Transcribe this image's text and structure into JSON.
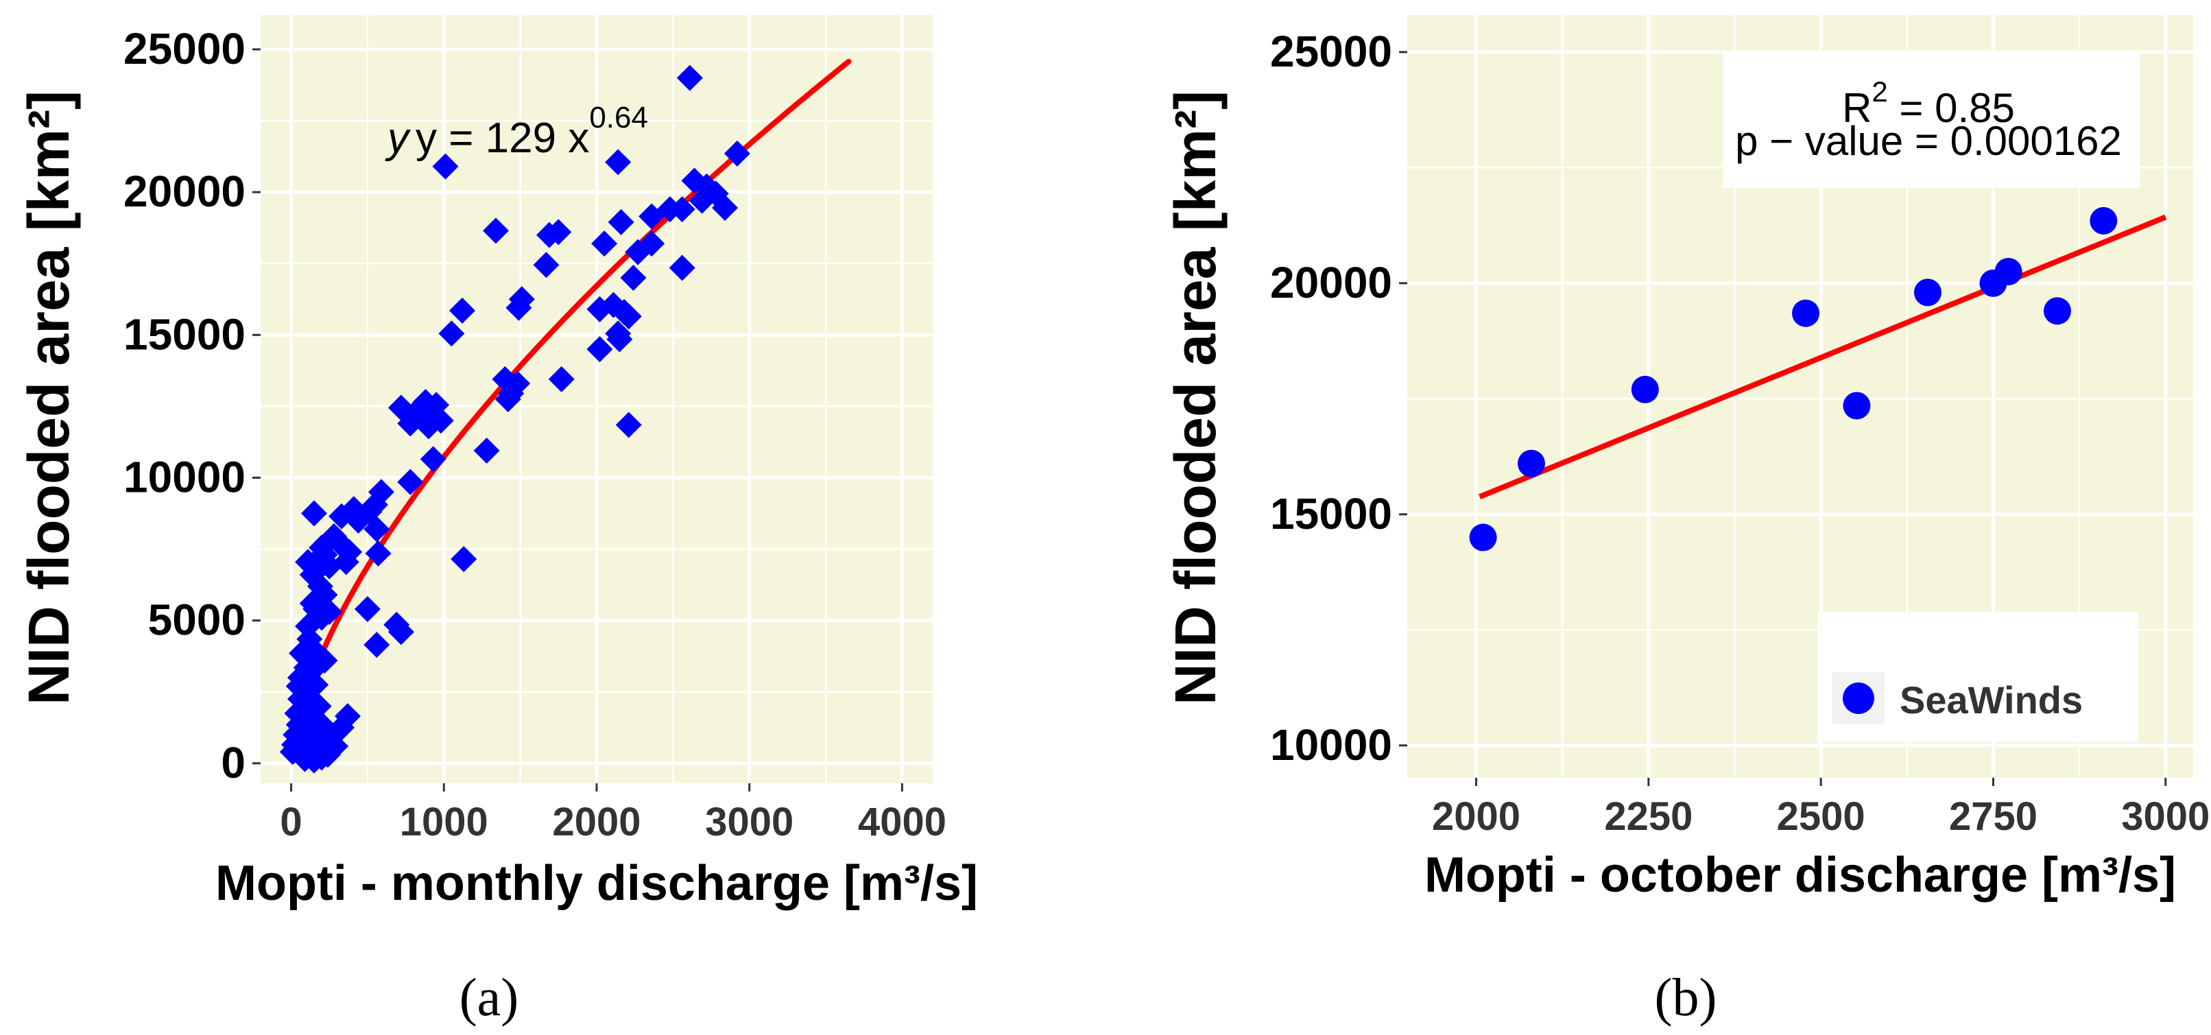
{
  "colors": {
    "panel_bg": "#f5f5dc",
    "grid": "#ffffff",
    "point": "#0000ff",
    "fit_line": "#ff0000",
    "text": "#000000",
    "tick_text": "#333333"
  },
  "chart_data": [
    {
      "type": "scatter",
      "marker": "diamond",
      "caption": "(a)",
      "title": "",
      "xlabel": "Mopti - monthly discharge [m³/s]",
      "ylabel": "NID flooded area [km²]",
      "xlim": [
        -200,
        4200
      ],
      "ylim": [
        -700,
        26200
      ],
      "xticks": [
        0,
        1000,
        2000,
        3000,
        4000
      ],
      "yticks": [
        0,
        5000,
        10000,
        15000,
        20000,
        25000
      ],
      "xtick_labels": [
        "0",
        "1000",
        "2000",
        "3000",
        "4000"
      ],
      "ytick_labels": [
        "0",
        "5000",
        "10000",
        "15000",
        "20000",
        "25000"
      ],
      "fit": {
        "type": "power",
        "a": 129,
        "b": 0.64,
        "x_range": [
          40,
          3650
        ]
      },
      "annotation": {
        "prefix": "y = 129 x",
        "exponent": "0.64"
      },
      "points": [
        {
          "x": 2610,
          "y": 24000
        },
        {
          "x": 1010,
          "y": 20900
        },
        {
          "x": 2140,
          "y": 21050
        },
        {
          "x": 2920,
          "y": 21350
        },
        {
          "x": 2720,
          "y": 20200
        },
        {
          "x": 2640,
          "y": 20400
        },
        {
          "x": 2780,
          "y": 19950
        },
        {
          "x": 2690,
          "y": 19700
        },
        {
          "x": 2560,
          "y": 19400
        },
        {
          "x": 2840,
          "y": 19450
        },
        {
          "x": 2360,
          "y": 19150
        },
        {
          "x": 2480,
          "y": 19400
        },
        {
          "x": 2160,
          "y": 18950
        },
        {
          "x": 1340,
          "y": 18650
        },
        {
          "x": 1690,
          "y": 18500
        },
        {
          "x": 1750,
          "y": 18600
        },
        {
          "x": 2050,
          "y": 18200
        },
        {
          "x": 2270,
          "y": 17900
        },
        {
          "x": 2360,
          "y": 18200
        },
        {
          "x": 1670,
          "y": 17450
        },
        {
          "x": 2560,
          "y": 17350
        },
        {
          "x": 2240,
          "y": 17000
        },
        {
          "x": 1510,
          "y": 16250
        },
        {
          "x": 1490,
          "y": 15950
        },
        {
          "x": 2020,
          "y": 15900
        },
        {
          "x": 2110,
          "y": 16050
        },
        {
          "x": 2180,
          "y": 15800
        },
        {
          "x": 2210,
          "y": 15650
        },
        {
          "x": 1120,
          "y": 15850
        },
        {
          "x": 1050,
          "y": 15050
        },
        {
          "x": 2140,
          "y": 15050
        },
        {
          "x": 2150,
          "y": 14850
        },
        {
          "x": 2020,
          "y": 14500
        },
        {
          "x": 1400,
          "y": 13450
        },
        {
          "x": 1480,
          "y": 13300
        },
        {
          "x": 1770,
          "y": 13450
        },
        {
          "x": 1440,
          "y": 12950
        },
        {
          "x": 1420,
          "y": 12750
        },
        {
          "x": 880,
          "y": 12650
        },
        {
          "x": 720,
          "y": 12450
        },
        {
          "x": 950,
          "y": 12550
        },
        {
          "x": 800,
          "y": 12200
        },
        {
          "x": 860,
          "y": 12350
        },
        {
          "x": 930,
          "y": 12100
        },
        {
          "x": 780,
          "y": 11900
        },
        {
          "x": 980,
          "y": 12000
        },
        {
          "x": 900,
          "y": 11800
        },
        {
          "x": 2210,
          "y": 11850
        },
        {
          "x": 1280,
          "y": 10950
        },
        {
          "x": 930,
          "y": 10650
        },
        {
          "x": 780,
          "y": 9850
        },
        {
          "x": 590,
          "y": 9500
        },
        {
          "x": 550,
          "y": 9050
        },
        {
          "x": 410,
          "y": 8900
        },
        {
          "x": 510,
          "y": 8800
        },
        {
          "x": 150,
          "y": 8750
        },
        {
          "x": 330,
          "y": 8650
        },
        {
          "x": 440,
          "y": 8500
        },
        {
          "x": 560,
          "y": 8200
        },
        {
          "x": 280,
          "y": 7950
        },
        {
          "x": 320,
          "y": 7700
        },
        {
          "x": 200,
          "y": 7550
        },
        {
          "x": 220,
          "y": 7300
        },
        {
          "x": 380,
          "y": 7400
        },
        {
          "x": 570,
          "y": 7350
        },
        {
          "x": 1130,
          "y": 7150
        },
        {
          "x": 110,
          "y": 7050
        },
        {
          "x": 170,
          "y": 7100
        },
        {
          "x": 140,
          "y": 6600
        },
        {
          "x": 250,
          "y": 6900
        },
        {
          "x": 360,
          "y": 7050
        },
        {
          "x": 190,
          "y": 6200
        },
        {
          "x": 220,
          "y": 5900
        },
        {
          "x": 140,
          "y": 5600
        },
        {
          "x": 160,
          "y": 5400
        },
        {
          "x": 250,
          "y": 5300
        },
        {
          "x": 500,
          "y": 5400
        },
        {
          "x": 110,
          "y": 4800
        },
        {
          "x": 200,
          "y": 5100
        },
        {
          "x": 690,
          "y": 4850
        },
        {
          "x": 720,
          "y": 4600
        },
        {
          "x": 120,
          "y": 4350
        },
        {
          "x": 560,
          "y": 4150
        },
        {
          "x": 70,
          "y": 3850
        },
        {
          "x": 140,
          "y": 4000
        },
        {
          "x": 220,
          "y": 3600
        },
        {
          "x": 100,
          "y": 3350
        },
        {
          "x": 60,
          "y": 3000
        },
        {
          "x": 130,
          "y": 3200
        },
        {
          "x": 50,
          "y": 2700
        },
        {
          "x": 110,
          "y": 2550
        },
        {
          "x": 160,
          "y": 2750
        },
        {
          "x": 60,
          "y": 2250
        },
        {
          "x": 100,
          "y": 2050
        },
        {
          "x": 140,
          "y": 2100
        },
        {
          "x": 180,
          "y": 2000
        },
        {
          "x": 40,
          "y": 1750
        },
        {
          "x": 90,
          "y": 1700
        },
        {
          "x": 150,
          "y": 1600
        },
        {
          "x": 370,
          "y": 1650
        },
        {
          "x": 50,
          "y": 1350
        },
        {
          "x": 130,
          "y": 1300
        },
        {
          "x": 200,
          "y": 1350
        },
        {
          "x": 330,
          "y": 1250
        },
        {
          "x": 30,
          "y": 1000
        },
        {
          "x": 100,
          "y": 950
        },
        {
          "x": 170,
          "y": 900
        },
        {
          "x": 260,
          "y": 950
        },
        {
          "x": 20,
          "y": 650
        },
        {
          "x": 80,
          "y": 700
        },
        {
          "x": 140,
          "y": 600
        },
        {
          "x": 220,
          "y": 650
        },
        {
          "x": 290,
          "y": 600
        },
        {
          "x": 10,
          "y": 400
        },
        {
          "x": 60,
          "y": 350
        },
        {
          "x": 120,
          "y": 300
        },
        {
          "x": 180,
          "y": 380
        },
        {
          "x": 240,
          "y": 300
        },
        {
          "x": 90,
          "y": 150
        },
        {
          "x": 150,
          "y": 100
        },
        {
          "x": 200,
          "y": 200
        }
      ]
    },
    {
      "type": "scatter",
      "marker": "circle",
      "caption": "(b)",
      "title": "",
      "xlabel": "Mopti - october discharge [m³/s]",
      "ylabel": "NID flooded area [km²]",
      "xlim": [
        1900,
        3040
      ],
      "ylim": [
        9300,
        25800
      ],
      "xticks": [
        2000,
        2250,
        2500,
        2750,
        3000
      ],
      "yticks": [
        10000,
        15000,
        20000,
        25000
      ],
      "xtick_labels": [
        "2000",
        "2250",
        "2500",
        "2750",
        "3000"
      ],
      "ytick_labels": [
        "10000",
        "15000",
        "20000",
        "25000"
      ],
      "fit": {
        "type": "linear",
        "x1": 2005,
        "y1": 15380,
        "x2": 3000,
        "y2": 21430
      },
      "stats": {
        "r2_prefix": "R",
        "r2_exp": "2",
        "r2_rest": " = 0.85",
        "p_text": "p − value = 0.000162"
      },
      "legend": {
        "label": "SeaWinds",
        "position": "bottom-right"
      },
      "points": [
        {
          "x": 2010,
          "y": 14500
        },
        {
          "x": 2080,
          "y": 16100
        },
        {
          "x": 2245,
          "y": 17700
        },
        {
          "x": 2478,
          "y": 19350
        },
        {
          "x": 2552,
          "y": 17350
        },
        {
          "x": 2655,
          "y": 19800
        },
        {
          "x": 2750,
          "y": 20000
        },
        {
          "x": 2772,
          "y": 20250
        },
        {
          "x": 2843,
          "y": 19400
        },
        {
          "x": 2910,
          "y": 21350
        }
      ]
    }
  ]
}
